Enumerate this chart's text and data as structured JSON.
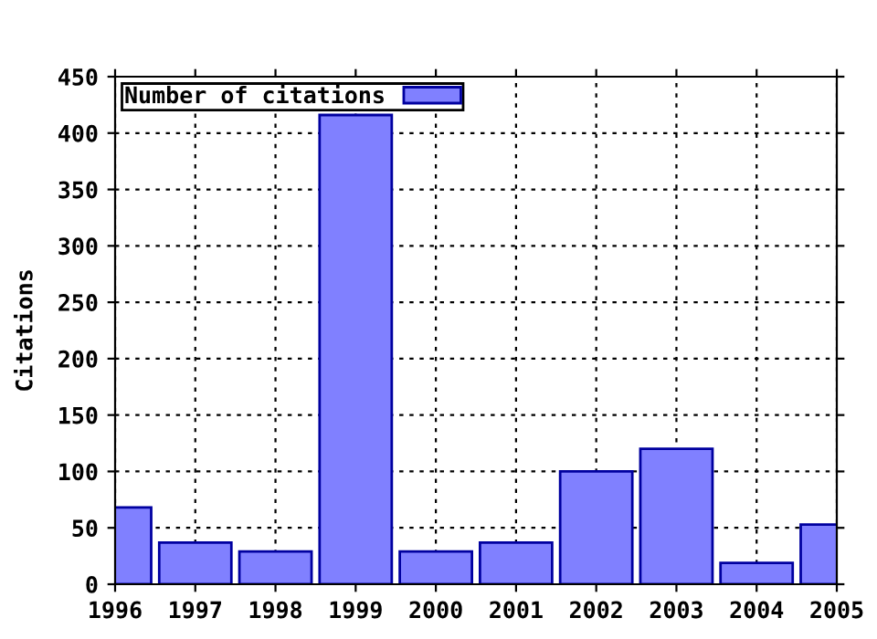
{
  "chart_data": {
    "type": "bar",
    "ylabel": "Citations",
    "x": [
      1996,
      1997,
      1998,
      1999,
      2000,
      2001,
      2002,
      2003,
      2004,
      2005
    ],
    "series": [
      {
        "name": "Number of citations",
        "color": "#8080ff",
        "values": [
          68,
          37,
          29,
          416,
          29,
          37,
          100,
          120,
          19,
          53
        ]
      }
    ],
    "xlim": [
      1996,
      2005
    ],
    "xticks": [
      1996,
      1997,
      1998,
      1999,
      2000,
      2001,
      2002,
      2003,
      2004,
      2005
    ],
    "ylim": [
      0,
      450
    ],
    "yticks": [
      0,
      50,
      100,
      150,
      200,
      250,
      300,
      350,
      400,
      450
    ],
    "grid": true,
    "legend": "top left"
  }
}
